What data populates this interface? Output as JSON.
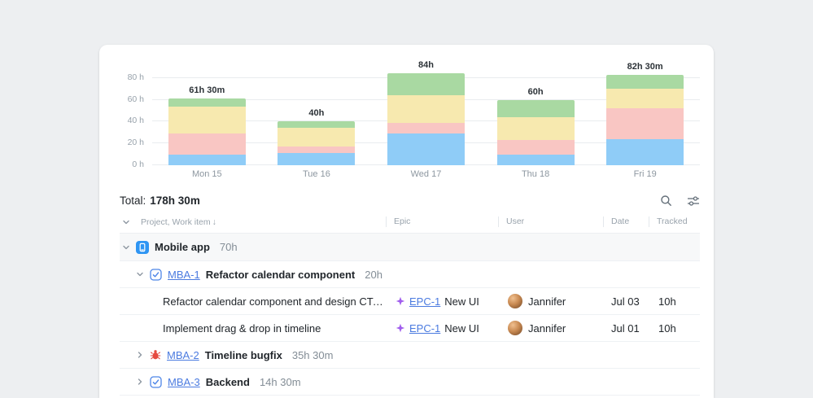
{
  "chart_data": {
    "type": "stacked_bar",
    "categories": [
      "Mon 15",
      "Tue 16",
      "Wed 17",
      "Thu 18",
      "Fri 19"
    ],
    "bar_total_labels": [
      "61h 30m",
      "40h",
      "84h",
      "60h",
      "82h 30m"
    ],
    "totals_hours": [
      61.5,
      40,
      84,
      60,
      82.5
    ],
    "series": [
      {
        "name": "segment-blue",
        "color": "#8fccf7",
        "values": [
          10,
          11,
          29,
          10,
          24
        ]
      },
      {
        "name": "segment-red",
        "color": "#f9c6c3",
        "values": [
          19,
          6,
          10,
          13,
          28
        ]
      },
      {
        "name": "segment-yellow",
        "color": "#f7e9af",
        "values": [
          25,
          17,
          25,
          21,
          18
        ]
      },
      {
        "name": "segment-green",
        "color": "#a9d9a2",
        "values": [
          7.5,
          6,
          20,
          16,
          12.5
        ]
      }
    ],
    "y_ticks": [
      {
        "value": 80,
        "label": "80 h"
      },
      {
        "value": 60,
        "label": "60 h"
      },
      {
        "value": 40,
        "label": "40 h"
      },
      {
        "value": 20,
        "label": "20 h"
      },
      {
        "value": 0,
        "label": "0 h"
      }
    ],
    "ylim": [
      0,
      88
    ],
    "grid": true,
    "legend": false
  },
  "summary": {
    "total_label": "Total:",
    "total_value": "178h 30m"
  },
  "toolbar": {
    "icons": [
      "search-icon",
      "filters-icon"
    ]
  },
  "table": {
    "headers": {
      "project": "Project, Work item",
      "sort_arrow": "↓",
      "epic": "Epic",
      "user": "User",
      "date": "Date",
      "tracked": "Tracked"
    },
    "group": {
      "icon": "mobile-app-icon",
      "name": "Mobile app",
      "hours": "70h"
    },
    "rows": [
      {
        "type": "task",
        "icon": "task-checkbox-icon",
        "key": "MBA-1",
        "title": "Refactor calendar component",
        "hours": "20h",
        "expanded": "true"
      },
      {
        "type": "item",
        "title": "Refactor calendar component and design CTA an…",
        "epic_key": "EPC-1",
        "epic_name": "New UI",
        "user": "Jannifer",
        "date": "Jul 03",
        "tracked": "10h"
      },
      {
        "type": "item",
        "title": "Implement drag & drop in timeline",
        "epic_key": "EPC-1",
        "epic_name": "New UI",
        "user": "Jannifer",
        "date": "Jul 01",
        "tracked": "10h"
      },
      {
        "type": "task",
        "icon": "bug-icon",
        "key": "MBA-2",
        "title": "Timeline bugfix",
        "hours": "35h 30m",
        "expanded": "false"
      },
      {
        "type": "task",
        "icon": "task-checkbox-icon",
        "key": "MBA-3",
        "title": "Backend",
        "hours": "14h 30m",
        "expanded": "false"
      }
    ]
  }
}
